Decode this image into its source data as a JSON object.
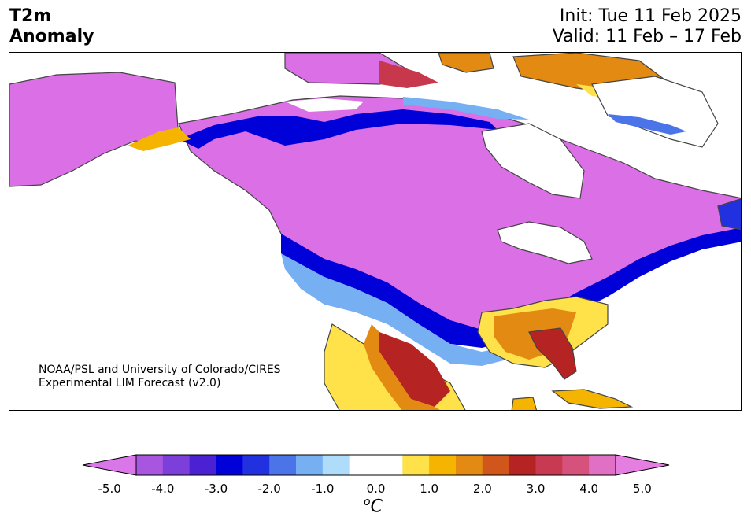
{
  "title": {
    "left_line1": "T2m",
    "left_line2": "Anomaly",
    "init": "Init: Tue 11 Feb 2025",
    "valid": "Valid: 11 Feb – 17 Feb"
  },
  "credit": {
    "line1": "NOAA/PSL and University of Colorado/CIRES",
    "line2": "Experimental LIM Forecast (v2.0)"
  },
  "colorbar": {
    "ticks": [
      "-5.0",
      "-4.0",
      "-3.0",
      "-2.0",
      "-1.0",
      "0.0",
      "1.0",
      "2.0",
      "3.0",
      "4.0",
      "5.0"
    ],
    "unit_sup": "o",
    "unit": "C",
    "colors": [
      "#d977e8",
      "#a855e0",
      "#7d3fd9",
      "#4a22d4",
      "#0000d8",
      "#2231e0",
      "#4a74e8",
      "#76b0f3",
      "#b0dcfc",
      "#ffffff",
      "#ffffff",
      "#ffe14a",
      "#f4b400",
      "#e28a12",
      "#d0561b",
      "#b52323",
      "#c83a52",
      "#d6527d",
      "#e070c4",
      "#e47ee0"
    ]
  },
  "map": {
    "anomaly_colors": {
      "cold_extreme": "#db6fe6",
      "cold_blue": "#0000d8",
      "cold_light": "#76b0f3",
      "warm_yellow": "#ffe14a",
      "warm_orange": "#e28a12",
      "warm_red": "#b52323"
    }
  }
}
